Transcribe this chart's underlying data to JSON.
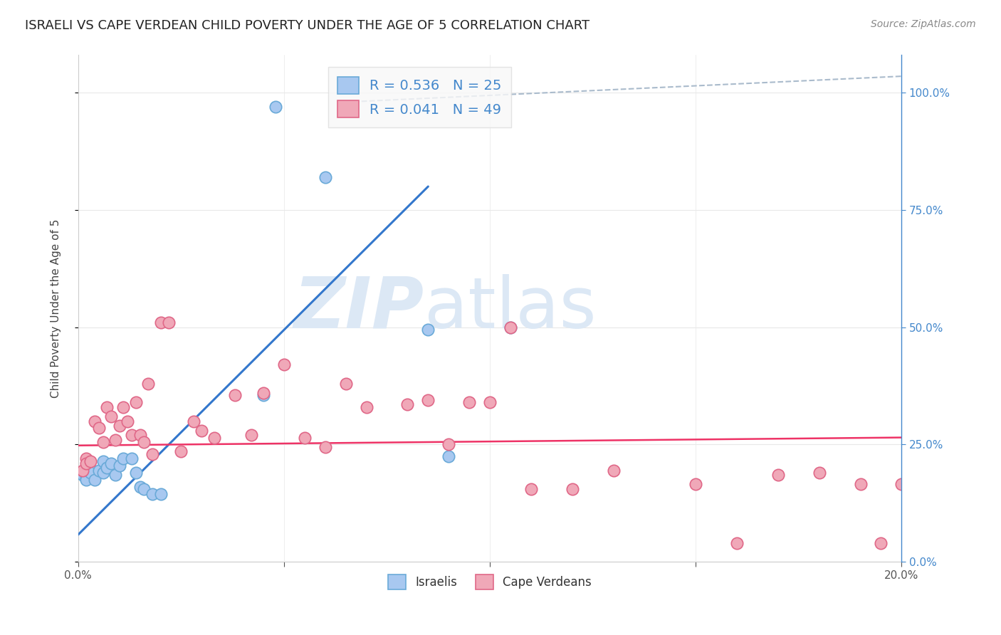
{
  "title": "ISRAELI VS CAPE VERDEAN CHILD POVERTY UNDER THE AGE OF 5 CORRELATION CHART",
  "source": "Source: ZipAtlas.com",
  "ylabel": "Child Poverty Under the Age of 5",
  "xlim": [
    0.0,
    0.2
  ],
  "ylim": [
    0.0,
    1.08
  ],
  "background_color": "#ffffff",
  "grid_color": "#e8e8e8",
  "israelis_color": "#a8c8f0",
  "cape_verdeans_color": "#f0a8b8",
  "israelis_edge_color": "#6aaad8",
  "cape_verdeans_edge_color": "#e06888",
  "blue_line_color": "#3377cc",
  "pink_line_color": "#ee3366",
  "gray_line_color": "#aabbcc",
  "r_israeli": 0.536,
  "n_israeli": 25,
  "r_cape_verdean": 0.041,
  "n_cape_verdean": 49,
  "blue_line_x0": 0.0,
  "blue_line_y0": 0.058,
  "blue_line_x1": 0.085,
  "blue_line_y1": 0.8,
  "pink_line_x0": 0.0,
  "pink_line_y0": 0.248,
  "pink_line_x1": 0.2,
  "pink_line_y1": 0.265,
  "gray_line_x0": 0.075,
  "gray_line_y0": 1.0,
  "gray_line_x1": 0.2,
  "gray_line_y1": 1.02,
  "israeli_x": [
    0.001,
    0.002,
    0.002,
    0.003,
    0.004,
    0.005,
    0.006,
    0.006,
    0.007,
    0.008,
    0.009,
    0.01,
    0.011,
    0.013,
    0.014,
    0.015,
    0.016,
    0.018,
    0.02,
    0.045,
    0.048,
    0.06,
    0.085,
    0.09,
    0.105
  ],
  "israeli_y": [
    0.185,
    0.18,
    0.175,
    0.19,
    0.175,
    0.195,
    0.215,
    0.19,
    0.2,
    0.21,
    0.185,
    0.205,
    0.22,
    0.22,
    0.19,
    0.16,
    0.155,
    0.145,
    0.145,
    0.355,
    0.97,
    0.82,
    0.495,
    0.225,
    0.5
  ],
  "cape_verdean_x": [
    0.001,
    0.002,
    0.002,
    0.003,
    0.004,
    0.005,
    0.006,
    0.007,
    0.008,
    0.009,
    0.01,
    0.011,
    0.012,
    0.013,
    0.014,
    0.015,
    0.016,
    0.017,
    0.018,
    0.02,
    0.022,
    0.025,
    0.028,
    0.03,
    0.033,
    0.038,
    0.042,
    0.045,
    0.05,
    0.055,
    0.06,
    0.065,
    0.07,
    0.08,
    0.085,
    0.09,
    0.095,
    0.1,
    0.105,
    0.11,
    0.12,
    0.13,
    0.15,
    0.16,
    0.17,
    0.18,
    0.19,
    0.195,
    0.2
  ],
  "cape_verdean_y": [
    0.195,
    0.22,
    0.21,
    0.215,
    0.3,
    0.285,
    0.255,
    0.33,
    0.31,
    0.26,
    0.29,
    0.33,
    0.3,
    0.27,
    0.34,
    0.27,
    0.255,
    0.38,
    0.23,
    0.51,
    0.51,
    0.235,
    0.3,
    0.28,
    0.265,
    0.355,
    0.27,
    0.36,
    0.42,
    0.265,
    0.245,
    0.38,
    0.33,
    0.335,
    0.345,
    0.25,
    0.34,
    0.34,
    0.5,
    0.155,
    0.155,
    0.195,
    0.165,
    0.04,
    0.185,
    0.19,
    0.165,
    0.04,
    0.165
  ],
  "watermark_zip": "ZIP",
  "watermark_atlas": "atlas",
  "watermark_color": "#dce8f5",
  "title_fontsize": 13,
  "axis_label_fontsize": 11,
  "tick_fontsize": 11,
  "legend_fontsize": 14
}
